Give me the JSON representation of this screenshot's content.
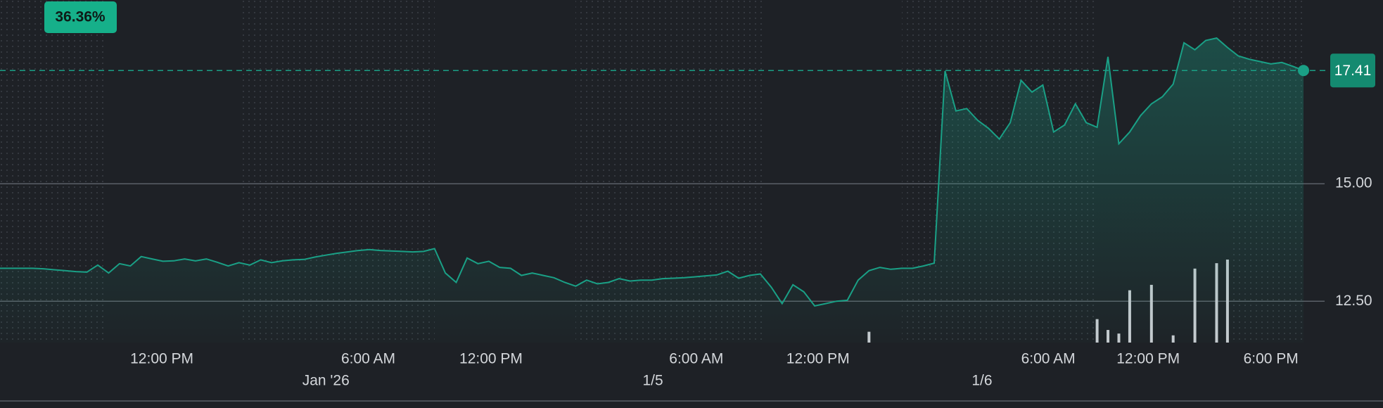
{
  "chart_data": {
    "type": "line",
    "change_label": "36.36%",
    "categories": [
      null,
      null,
      null,
      null,
      null,
      null,
      null,
      null,
      null,
      null,
      null,
      null,
      null,
      null,
      null,
      null,
      null,
      null,
      null,
      null,
      null,
      null,
      null,
      null,
      null,
      null,
      null,
      null,
      null,
      null,
      null,
      null,
      null,
      null,
      null,
      null,
      null,
      null,
      null,
      null,
      null,
      null,
      null,
      null,
      null,
      null,
      null,
      null,
      null,
      null,
      null,
      null,
      null,
      null,
      null,
      null,
      null,
      null,
      null,
      null,
      null,
      null,
      null,
      null,
      null,
      null,
      null,
      null,
      null,
      null,
      null,
      null,
      null,
      null,
      null,
      null,
      null,
      null,
      null,
      null,
      null,
      null,
      null,
      null,
      null,
      null,
      null,
      null,
      null,
      null,
      null,
      null,
      null,
      null,
      null,
      null,
      null,
      null,
      null,
      null,
      null,
      null,
      null,
      null,
      null,
      null,
      null,
      null,
      null,
      null,
      null,
      null,
      null,
      null,
      null,
      null,
      null,
      null,
      null,
      null,
      null
    ],
    "series": [
      {
        "color": "#1aa086",
        "values": [
          13.2,
          13.2,
          13.2,
          13.2,
          13.19,
          13.17,
          13.15,
          13.13,
          13.12,
          13.27,
          13.1,
          13.3,
          13.25,
          13.45,
          13.4,
          13.35,
          13.36,
          13.4,
          13.36,
          13.4,
          13.33,
          13.25,
          13.32,
          13.27,
          13.38,
          13.32,
          13.36,
          13.38,
          13.39,
          13.44,
          13.48,
          13.52,
          13.55,
          13.58,
          13.6,
          13.58,
          13.57,
          13.56,
          13.55,
          13.56,
          13.62,
          13.1,
          12.9,
          13.42,
          13.3,
          13.35,
          13.22,
          13.2,
          13.05,
          13.1,
          13.05,
          13.0,
          12.9,
          12.82,
          12.95,
          12.87,
          12.9,
          12.98,
          12.93,
          12.95,
          12.95,
          12.98,
          12.99,
          13.0,
          13.02,
          13.04,
          13.06,
          13.14,
          12.99,
          13.05,
          13.08,
          12.8,
          12.45,
          12.85,
          12.7,
          12.4,
          12.45,
          12.5,
          12.52,
          12.95,
          13.15,
          13.22,
          13.18,
          13.2,
          13.2,
          13.25,
          13.31,
          17.4,
          16.55,
          16.6,
          16.35,
          16.18,
          15.95,
          16.3,
          17.2,
          16.95,
          17.1,
          16.1,
          16.25,
          16.7,
          16.3,
          16.2,
          17.7,
          15.85,
          16.1,
          16.45,
          16.7,
          16.85,
          17.12,
          18.0,
          17.85,
          18.05,
          18.1,
          17.9,
          17.72,
          17.65,
          17.6,
          17.55,
          17.58,
          17.5,
          17.41
        ]
      }
    ],
    "volume": {
      "color": "#c8cbd0",
      "values": [
        null,
        null,
        null,
        null,
        null,
        null,
        null,
        null,
        null,
        null,
        null,
        null,
        null,
        null,
        null,
        null,
        null,
        null,
        null,
        null,
        null,
        null,
        null,
        null,
        null,
        null,
        null,
        null,
        null,
        null,
        null,
        null,
        null,
        null,
        null,
        null,
        null,
        null,
        null,
        null,
        null,
        null,
        null,
        null,
        null,
        null,
        null,
        null,
        null,
        null,
        null,
        null,
        null,
        null,
        null,
        null,
        null,
        null,
        null,
        null,
        null,
        null,
        null,
        null,
        null,
        null,
        null,
        null,
        null,
        null,
        null,
        null,
        null,
        null,
        null,
        null,
        null,
        null,
        null,
        null,
        12,
        null,
        null,
        null,
        null,
        null,
        null,
        null,
        null,
        null,
        null,
        null,
        null,
        null,
        null,
        null,
        null,
        null,
        null,
        null,
        null,
        26,
        14,
        10,
        58,
        null,
        64,
        null,
        8,
        null,
        82,
        null,
        88,
        92,
        null,
        null,
        null,
        null,
        null,
        null,
        null
      ]
    },
    "ylim": [
      11.62,
      18.91
    ],
    "yticks": [
      {
        "value": 12.5,
        "label": "12.50"
      },
      {
        "value": 15,
        "label": "15.00"
      }
    ],
    "xticks": [
      {
        "value": 14.9,
        "label": "12:00 PM"
      },
      {
        "value": 33.9,
        "label": "6:00 AM"
      },
      {
        "value": 45.2,
        "label": "12:00 PM"
      },
      {
        "value": 64.1,
        "label": "6:00 AM"
      },
      {
        "value": 75.3,
        "label": "12:00 PM"
      },
      {
        "value": 96.5,
        "label": "6:00 AM"
      },
      {
        "value": 105.7,
        "label": "12:00 PM"
      },
      {
        "value": 117,
        "label": "6:00 PM"
      }
    ],
    "date_ticks": [
      {
        "value": 30.0,
        "label": "Jan '26"
      },
      {
        "value": 60.1,
        "label": "1/5"
      },
      {
        "value": 90.4,
        "label": "1/6"
      }
    ],
    "grid": true
  }
}
